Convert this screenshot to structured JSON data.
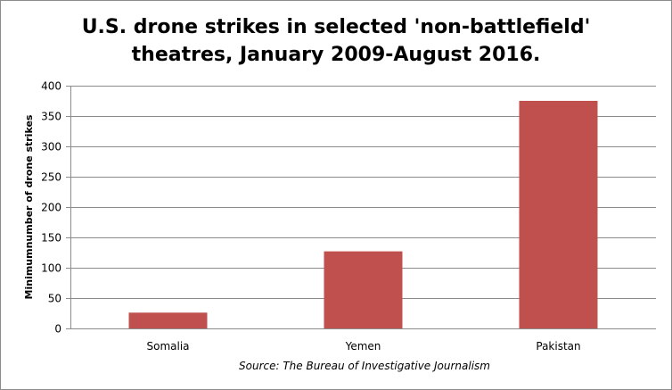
{
  "chart_data": {
    "type": "bar",
    "title_line1": "U.S. drone strikes in selected 'non-battlefield'",
    "title_line2": "theatres, January 2009-August 2016.",
    "xlabel": "",
    "ylabel": "Minimumnumber of drone strikes",
    "source": "Source: The Bureau of Investigative Journalism",
    "categories": [
      "Somalia",
      "Yemen",
      "Pakistan"
    ],
    "values": [
      26,
      127,
      375
    ],
    "ylim": [
      0,
      400
    ],
    "yticks": [
      0,
      50,
      100,
      150,
      200,
      250,
      300,
      350,
      400
    ],
    "grid": true,
    "legend": "none",
    "bar_color": "#c0504d",
    "grid_color": "#8c8c8c"
  }
}
